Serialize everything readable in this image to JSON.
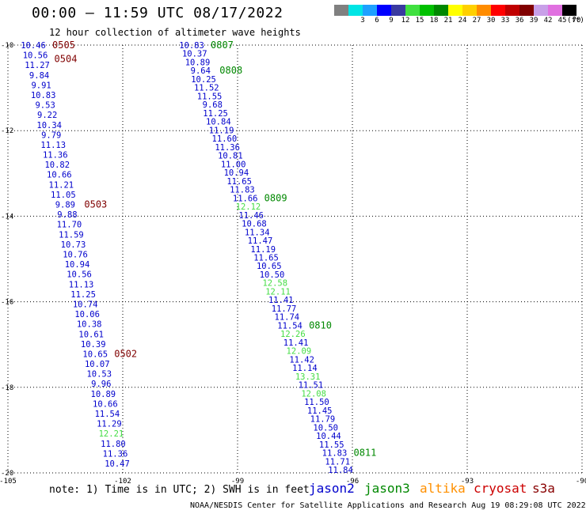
{
  "title": "00:00 – 11:59 UTC 08/17/2022",
  "subtitle": "12 hour collection of altimeter wave heights",
  "legend": {
    "unit": "(ft)",
    "levels": [
      {
        "label": "",
        "color": "#808080"
      },
      {
        "label": "3",
        "color": "#00e5e5"
      },
      {
        "label": "6",
        "color": "#1ea0ff"
      },
      {
        "label": "9",
        "color": "#0000ff"
      },
      {
        "label": "12",
        "color": "#3a3aa0"
      },
      {
        "label": "15",
        "color": "#40e040"
      },
      {
        "label": "18",
        "color": "#00c000"
      },
      {
        "label": "21",
        "color": "#008800"
      },
      {
        "label": "24",
        "color": "#ffff00"
      },
      {
        "label": "27",
        "color": "#ffd000"
      },
      {
        "label": "30",
        "color": "#ff8c00"
      },
      {
        "label": "33",
        "color": "#ff0000"
      },
      {
        "label": "36",
        "color": "#c00000"
      },
      {
        "label": "39",
        "color": "#800000"
      },
      {
        "label": "42",
        "color": "#c8a0e8"
      },
      {
        "label": "45",
        "color": "#e070e0"
      },
      {
        "label": "70",
        "color": "#000000"
      }
    ]
  },
  "note": "note:  1) Time is in UTC; 2) SWH is in feet",
  "missions": [
    {
      "name": "jason2",
      "color": "#0000cc"
    },
    {
      "name": "jason3",
      "color": "#008800"
    },
    {
      "name": "altika",
      "color": "#ff9000"
    },
    {
      "name": "cryosat",
      "color": "#cc0000"
    },
    {
      "name": "s3a",
      "color": "#880000"
    }
  ],
  "footer": "NOAA/NESDIS Center for Satellite Applications and Research    Aug 19 08:29:08 UTC 2022",
  "chart_data": {
    "type": "scatter",
    "xlim": [
      -105,
      -90
    ],
    "ylim": [
      -20,
      -10
    ],
    "xticks": [
      -105,
      -102,
      -99,
      -96,
      -93,
      -90
    ],
    "yticks": [
      -10,
      -12,
      -14,
      -16,
      -18,
      -20
    ],
    "grid": true,
    "track_west": {
      "values": [
        "10.46",
        "10.56",
        "11.27",
        "9.84",
        "9.91",
        "10.83",
        "9.53",
        "9.22",
        "10.34",
        "9.79",
        "11.13",
        "11.36",
        "10.82",
        "10.66",
        "11.21",
        "11.05",
        "9.89",
        "9.88",
        "11.70",
        "11.59",
        "10.73",
        "10.76",
        "10.94",
        "10.56",
        "11.13",
        "11.25",
        "10.74",
        "10.06",
        "10.38",
        "10.61",
        "10.39",
        "10.65",
        "10.07",
        "10.53",
        "9.96",
        "10.89",
        "10.66",
        "11.54",
        "11.29",
        "12.21",
        "11.80",
        "11.36",
        "10.47"
      ],
      "colors": [
        "b",
        "b",
        "b",
        "b",
        "b",
        "b",
        "b",
        "b",
        "b",
        "b",
        "b",
        "b",
        "b",
        "b",
        "b",
        "b",
        "b",
        "b",
        "b",
        "b",
        "b",
        "b",
        "b",
        "b",
        "b",
        "b",
        "b",
        "b",
        "b",
        "b",
        "b",
        "b",
        "b",
        "b",
        "b",
        "b",
        "b",
        "b",
        "b",
        "g",
        "b",
        "b",
        "b"
      ],
      "time_labels": [
        {
          "index": 0,
          "text": "0505"
        },
        {
          "index": 1,
          "text": "0504"
        },
        {
          "index": 16,
          "text": "0503"
        },
        {
          "index": 31,
          "text": "0502"
        }
      ]
    },
    "track_east": {
      "values": [
        "10.83",
        "10.37",
        "10.89",
        "9.64",
        "10.25",
        "11.52",
        "11.55",
        "9.68",
        "11.25",
        "10.84",
        "11.19",
        "11.60",
        "11.36",
        "10.81",
        "11.00",
        "10.94",
        "11.65",
        "11.83",
        "11.66",
        "12.12",
        "11.46",
        "10.68",
        "11.34",
        "11.47",
        "11.19",
        "11.65",
        "10.65",
        "10.50",
        "12.58",
        "12.11",
        "11.41",
        "11.77",
        "11.74",
        "11.54",
        "12.26",
        "11.41",
        "12.09",
        "11.42",
        "11.14",
        "13.31",
        "11.51",
        "12.08",
        "11.50",
        "11.45",
        "11.79",
        "10.50",
        "10.44",
        "11.55",
        "11.83",
        "11.71",
        "11.84"
      ],
      "colors": [
        "b",
        "b",
        "b",
        "b",
        "b",
        "b",
        "b",
        "b",
        "b",
        "b",
        "b",
        "b",
        "b",
        "b",
        "b",
        "b",
        "b",
        "b",
        "b",
        "g",
        "b",
        "b",
        "b",
        "b",
        "b",
        "b",
        "b",
        "b",
        "g",
        "g",
        "b",
        "b",
        "b",
        "b",
        "g",
        "b",
        "g",
        "b",
        "b",
        "g",
        "b",
        "g",
        "b",
        "b",
        "b",
        "b",
        "b",
        "b",
        "b",
        "b",
        "b"
      ],
      "time_labels": [
        {
          "index": 0,
          "text": "0807"
        },
        {
          "index": 3,
          "text": "0808"
        },
        {
          "index": 18,
          "text": "0809"
        },
        {
          "index": 33,
          "text": "0810"
        },
        {
          "index": 48,
          "text": "0811"
        }
      ]
    }
  }
}
